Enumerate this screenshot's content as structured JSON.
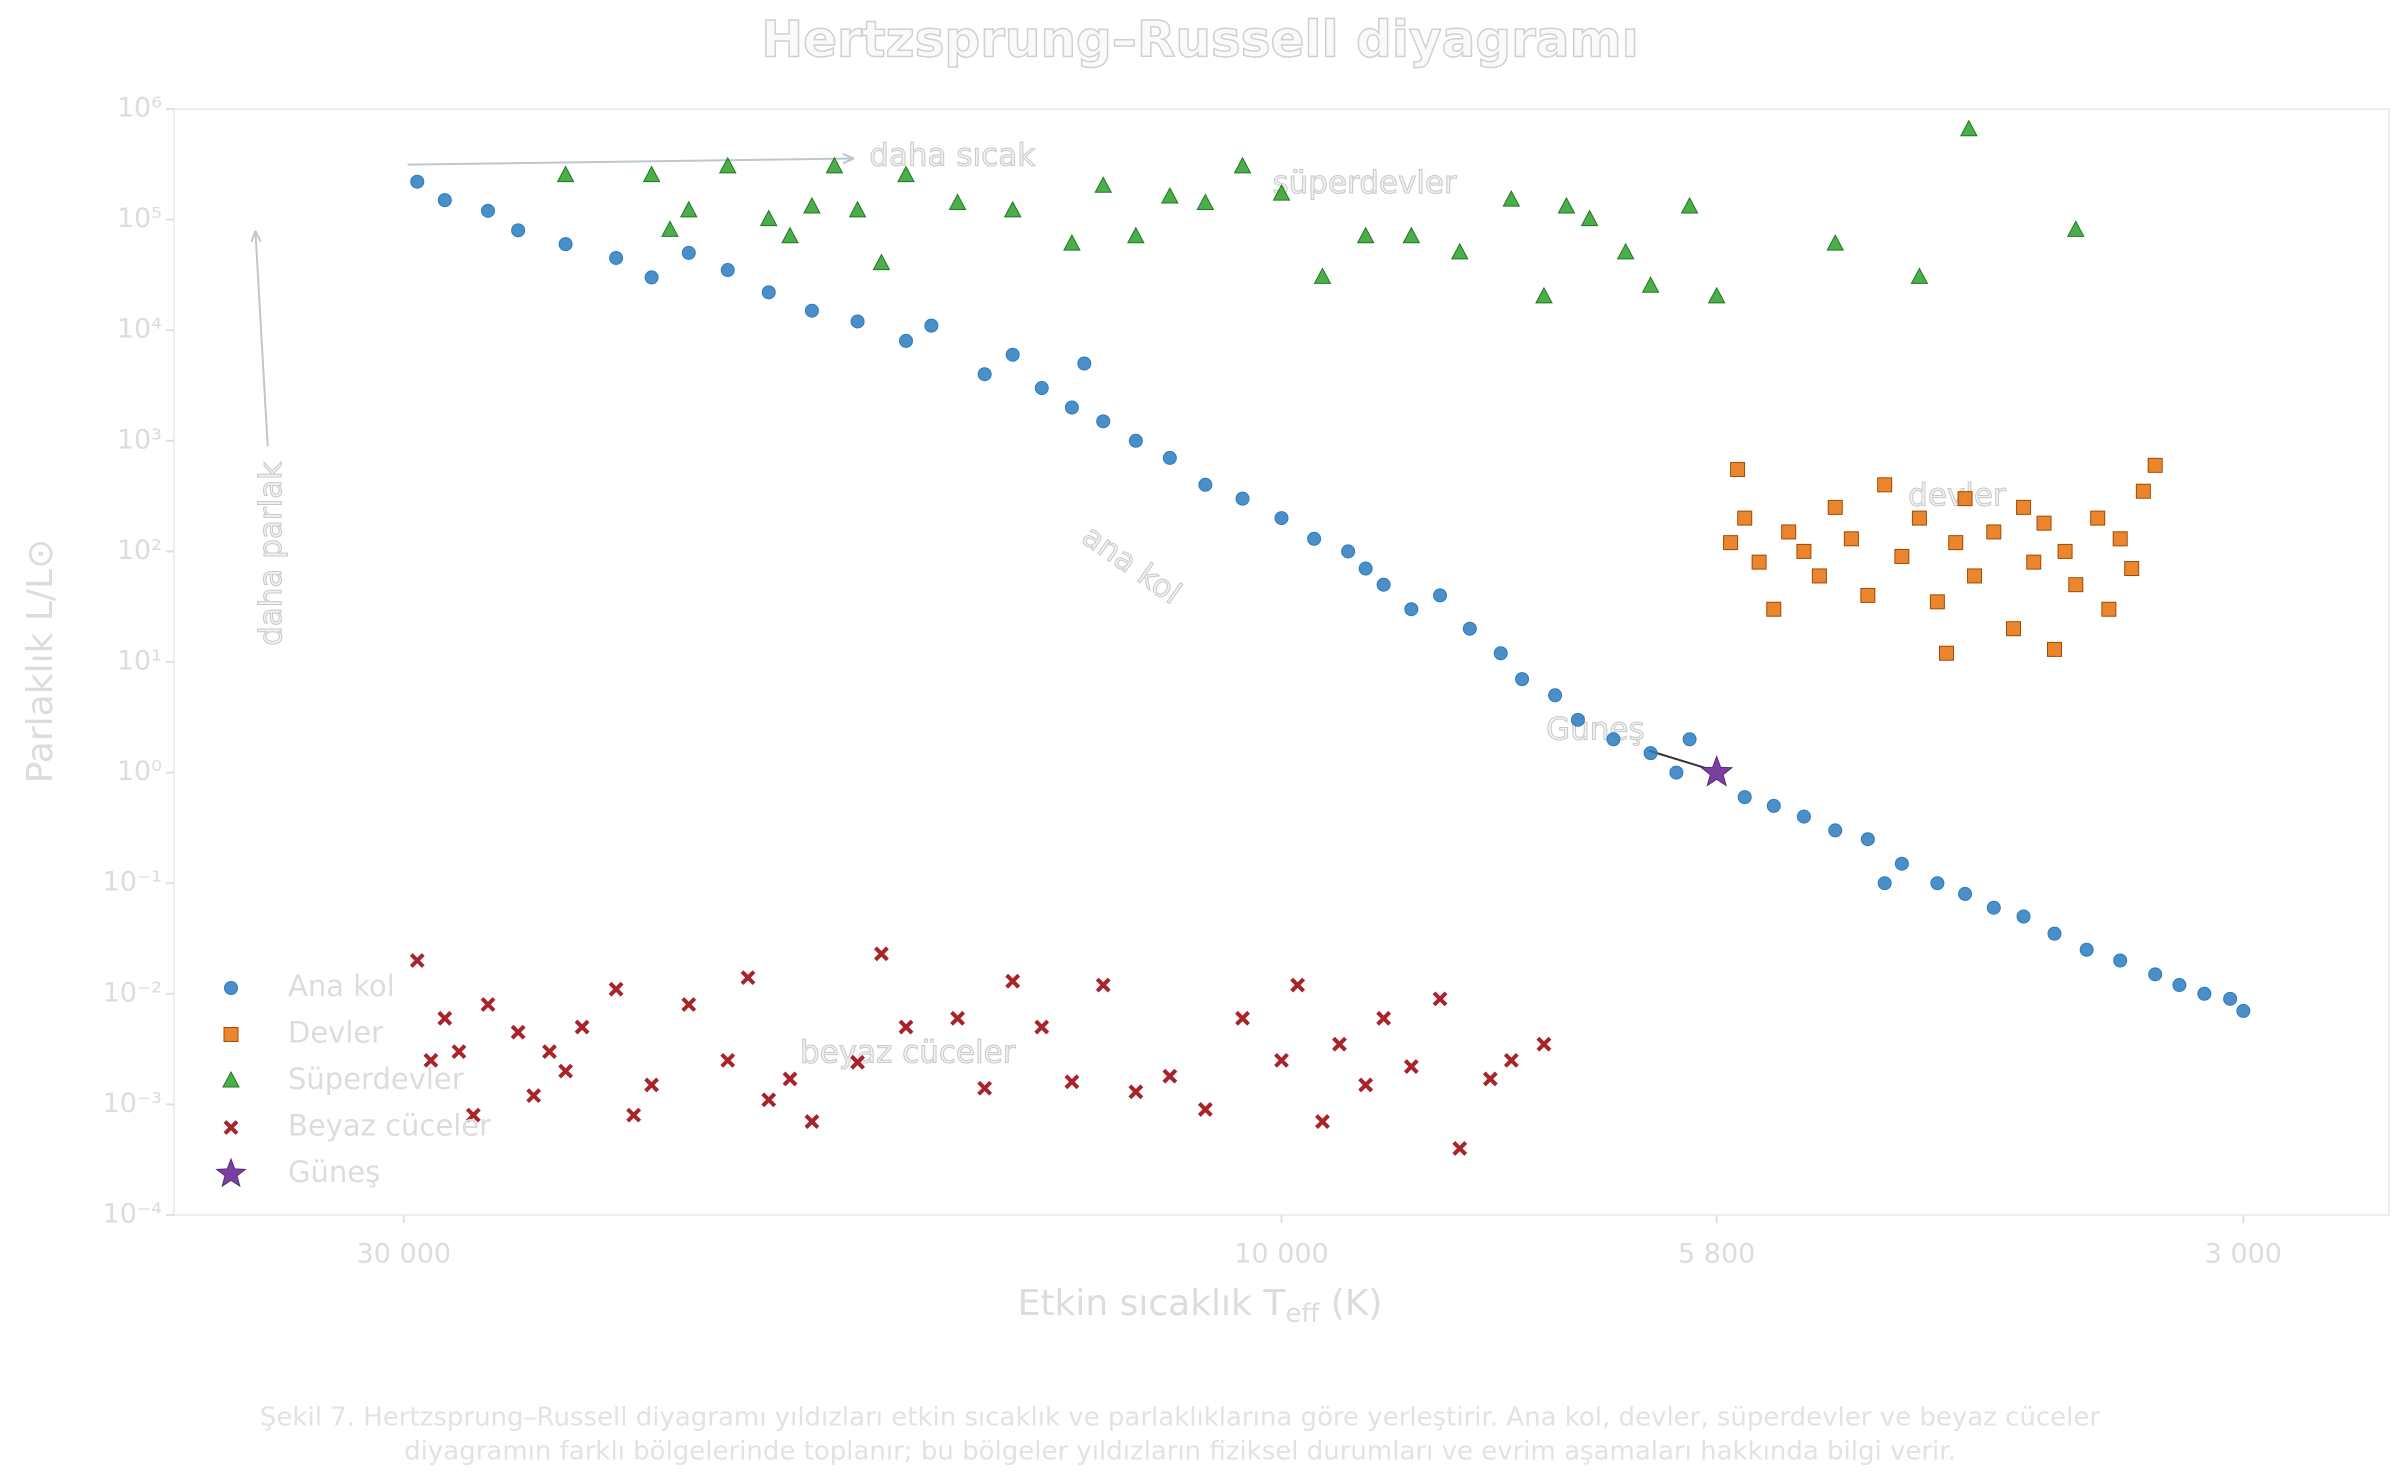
{
  "chart_data": {
    "type": "scatter",
    "title": "Hertzsprung–Russell diyagramı",
    "xlabel": {
      "text": "Etkin sıcaklık T",
      "sub": "eff",
      "unit": " (K)"
    },
    "ylabel": "Parlaklık L/L⊙",
    "xscale": "log",
    "yscale": "log",
    "xreversed": true,
    "grid": false,
    "legend": "lower left",
    "xlim": [
      40000,
      2500
    ],
    "ylim": [
      0.0001,
      1000000
    ],
    "xticks": [
      {
        "value": 30000,
        "label": "30 000"
      },
      {
        "value": 10000,
        "label": "10 000"
      },
      {
        "value": 5800,
        "label": "5 800"
      },
      {
        "value": 3000,
        "label": "3 000"
      }
    ],
    "yticks": [
      {
        "value": 0.0001,
        "label": "10⁻⁴"
      },
      {
        "value": 0.001,
        "label": "10⁻³"
      },
      {
        "value": 0.01,
        "label": "10⁻²"
      },
      {
        "value": 0.1,
        "label": "10⁻¹"
      },
      {
        "value": 1,
        "label": "10⁰"
      },
      {
        "value": 10,
        "label": "10¹"
      },
      {
        "value": 100,
        "label": "10²"
      },
      {
        "value": 1000,
        "label": "10³"
      },
      {
        "value": 10000,
        "label": "10⁴"
      },
      {
        "value": 100000,
        "label": "10⁵"
      },
      {
        "value": 1000000,
        "label": "10⁶"
      }
    ],
    "series": [
      {
        "name": "Ana kol",
        "color": "#2b7bbf",
        "marker": "o",
        "x": [
          29500,
          28500,
          27000,
          26000,
          24500,
          23000,
          22000,
          21000,
          20000,
          19000,
          18000,
          17000,
          16000,
          15500,
          14500,
          14000,
          13500,
          13000,
          12800,
          12500,
          12000,
          11500,
          11000,
          10500,
          10000,
          9600,
          9200,
          9000,
          8800,
          8500,
          8200,
          7900,
          7600,
          7400,
          7100,
          6900,
          6600,
          6300,
          6100,
          6000,
          5600,
          5400,
          5200,
          5000,
          4800,
          4700,
          4600,
          4400,
          4250,
          4100,
          3950,
          3800,
          3650,
          3500,
          3350,
          3250,
          3150,
          3050,
          3000
        ],
        "y": [
          220000,
          150000,
          120000,
          80000,
          60000,
          45000,
          30000,
          50000,
          35000,
          22000,
          15000,
          12000,
          8000,
          11000,
          4000,
          6000,
          3000,
          2000,
          5000,
          1500,
          1000,
          700,
          400,
          300,
          200,
          130,
          100,
          70,
          50,
          30,
          40,
          20,
          12,
          7,
          5,
          3,
          2,
          1.5,
          1,
          2,
          0.6,
          0.5,
          0.4,
          0.3,
          0.25,
          0.1,
          0.15,
          0.1,
          0.08,
          0.06,
          0.05,
          0.035,
          0.025,
          0.02,
          0.015,
          0.012,
          0.01,
          0.009,
          0.007
        ]
      },
      {
        "name": "Devler",
        "color": "#e8710a",
        "marker": "s",
        "x": [
          5700,
          5650,
          5600,
          5500,
          5400,
          5300,
          5200,
          5100,
          5000,
          4900,
          4800,
          4700,
          4600,
          4500,
          4400,
          4350,
          4300,
          4250,
          4200,
          4100,
          4000,
          3950,
          3900,
          3850,
          3800,
          3750,
          3700,
          3600,
          3550,
          3500,
          3450,
          3400,
          3350
        ],
        "y": [
          120,
          550,
          200,
          80,
          30,
          150,
          100,
          60,
          250,
          130,
          40,
          400,
          90,
          200,
          35,
          12,
          120,
          300,
          60,
          150,
          20,
          250,
          80,
          180,
          13,
          100,
          50,
          200,
          30,
          130,
          70,
          350,
          600
        ]
      },
      {
        "name": "Süperdevler",
        "color": "#2ca02c",
        "marker": "^",
        "x": [
          24500,
          22000,
          21500,
          21000,
          20000,
          19000,
          18500,
          18000,
          17500,
          17000,
          16500,
          16000,
          15000,
          14000,
          13000,
          12500,
          12000,
          11500,
          11000,
          10500,
          10000,
          9500,
          9000,
          8500,
          8000,
          7500,
          7200,
          7000,
          6800,
          6500,
          6300,
          6000,
          5800,
          5000,
          4500,
          4230,
          3700
        ],
        "y": [
          250000,
          250000,
          80000,
          120000,
          300000,
          100000,
          70000,
          130000,
          300000,
          120000,
          40000,
          250000,
          140000,
          120000,
          60000,
          200000,
          70000,
          160000,
          140000,
          300000,
          170000,
          30000,
          70000,
          70000,
          50000,
          150000,
          20000,
          130000,
          100000,
          50000,
          25000,
          130000,
          20000,
          60000,
          30000,
          650000,
          80000
        ]
      },
      {
        "name": "Beyaz cüceler",
        "color": "#a8232a",
        "marker": "x",
        "x": [
          29500,
          29000,
          28500,
          28000,
          27500,
          27000,
          26000,
          25500,
          25000,
          24500,
          24000,
          23000,
          22500,
          22000,
          21000,
          20000,
          19500,
          19000,
          18500,
          18000,
          17000,
          16500,
          16000,
          15000,
          14500,
          14000,
          13500,
          13000,
          12500,
          12000,
          11500,
          11000,
          10500,
          10000,
          9800,
          9500,
          9300,
          9000,
          8800,
          8500,
          8200,
          8000,
          7700,
          7500,
          7200
        ],
        "y": [
          0.02,
          0.0025,
          0.006,
          0.003,
          0.0008,
          0.008,
          0.0045,
          0.0012,
          0.003,
          0.002,
          0.005,
          0.011,
          0.0008,
          0.0015,
          0.008,
          0.0025,
          0.014,
          0.0011,
          0.0017,
          0.0007,
          0.0024,
          0.023,
          0.005,
          0.006,
          0.0014,
          0.013,
          0.005,
          0.0016,
          0.012,
          0.0013,
          0.0018,
          0.0009,
          0.006,
          0.0025,
          0.012,
          0.0007,
          0.0035,
          0.0015,
          0.006,
          0.0022,
          0.009,
          0.0004,
          0.0017,
          0.0025,
          0.0035
        ]
      },
      {
        "name": "Güneş",
        "color": "#7b3fa0",
        "marker": "*",
        "x": [
          5800
        ],
        "y": [
          1
        ]
      }
    ],
    "annotations": [
      "daha sıcak",
      "daha parlak",
      "süperdevler",
      "devler",
      "ana kol",
      "Güneş",
      "beyaz cüceler"
    ],
    "caption": [
      "Şekil 7. Hertzsprung–Russell diyagramı yıldızları etkin sıcaklık ve parlaklıklarına göre yerleştirir. Ana kol, devler, süperdevler ve beyaz cüceler",
      "diyagramın farklı bölgelerinde toplanır; bu bölgeler yıldızların fiziksel durumları ve evrim aşamaları hakkında bilgi verir."
    ]
  }
}
